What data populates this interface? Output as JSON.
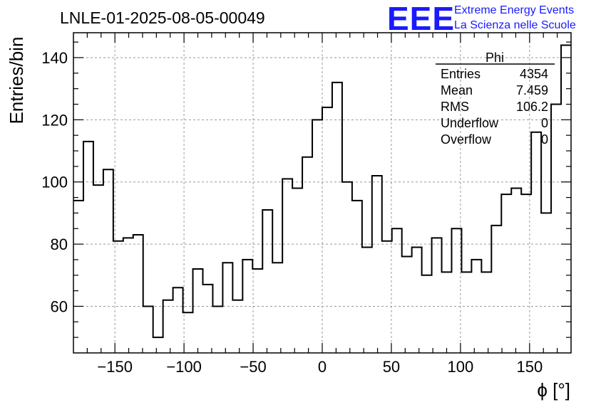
{
  "chart_data": {
    "type": "histogram",
    "title": "LNLE-01-2025-08-05-00049",
    "xlabel": "ϕ [°]",
    "ylabel": "Entries/bin",
    "xlim": [
      -180,
      180
    ],
    "ylim": [
      45,
      148
    ],
    "grid": true,
    "bin_width": 7.2,
    "x_ticks": [
      -150,
      -100,
      -50,
      0,
      50,
      100,
      150
    ],
    "x_tick_labels": [
      "−150",
      "−100",
      "−50",
      "0",
      "50",
      "100",
      "150"
    ],
    "y_ticks": [
      60,
      80,
      100,
      120,
      140
    ],
    "y_tick_labels": [
      "60",
      "80",
      "100",
      "120",
      "140"
    ],
    "values": [
      94,
      113,
      99,
      104,
      81,
      82,
      83,
      60,
      50,
      62,
      66,
      58,
      72,
      67,
      60,
      74,
      62,
      75,
      72,
      91,
      74,
      101,
      98,
      108,
      120,
      124,
      132,
      100,
      94,
      79,
      102,
      81,
      85,
      76,
      79,
      70,
      82,
      71,
      85,
      71,
      75,
      71,
      86,
      96,
      98,
      96,
      116,
      90,
      125,
      144
    ],
    "stats_box": {
      "name": "Phi",
      "rows": [
        {
          "label": "Entries",
          "value": "4354"
        },
        {
          "label": "Mean",
          "value": "7.459"
        },
        {
          "label": "RMS",
          "value": "106.2"
        },
        {
          "label": "Underflow",
          "value": "0"
        },
        {
          "label": "Overflow",
          "value": "0"
        }
      ]
    }
  },
  "logo": {
    "mark": "EEE",
    "line1": "Extreme Energy Events",
    "line2": "La Scienza nelle Scuole"
  }
}
